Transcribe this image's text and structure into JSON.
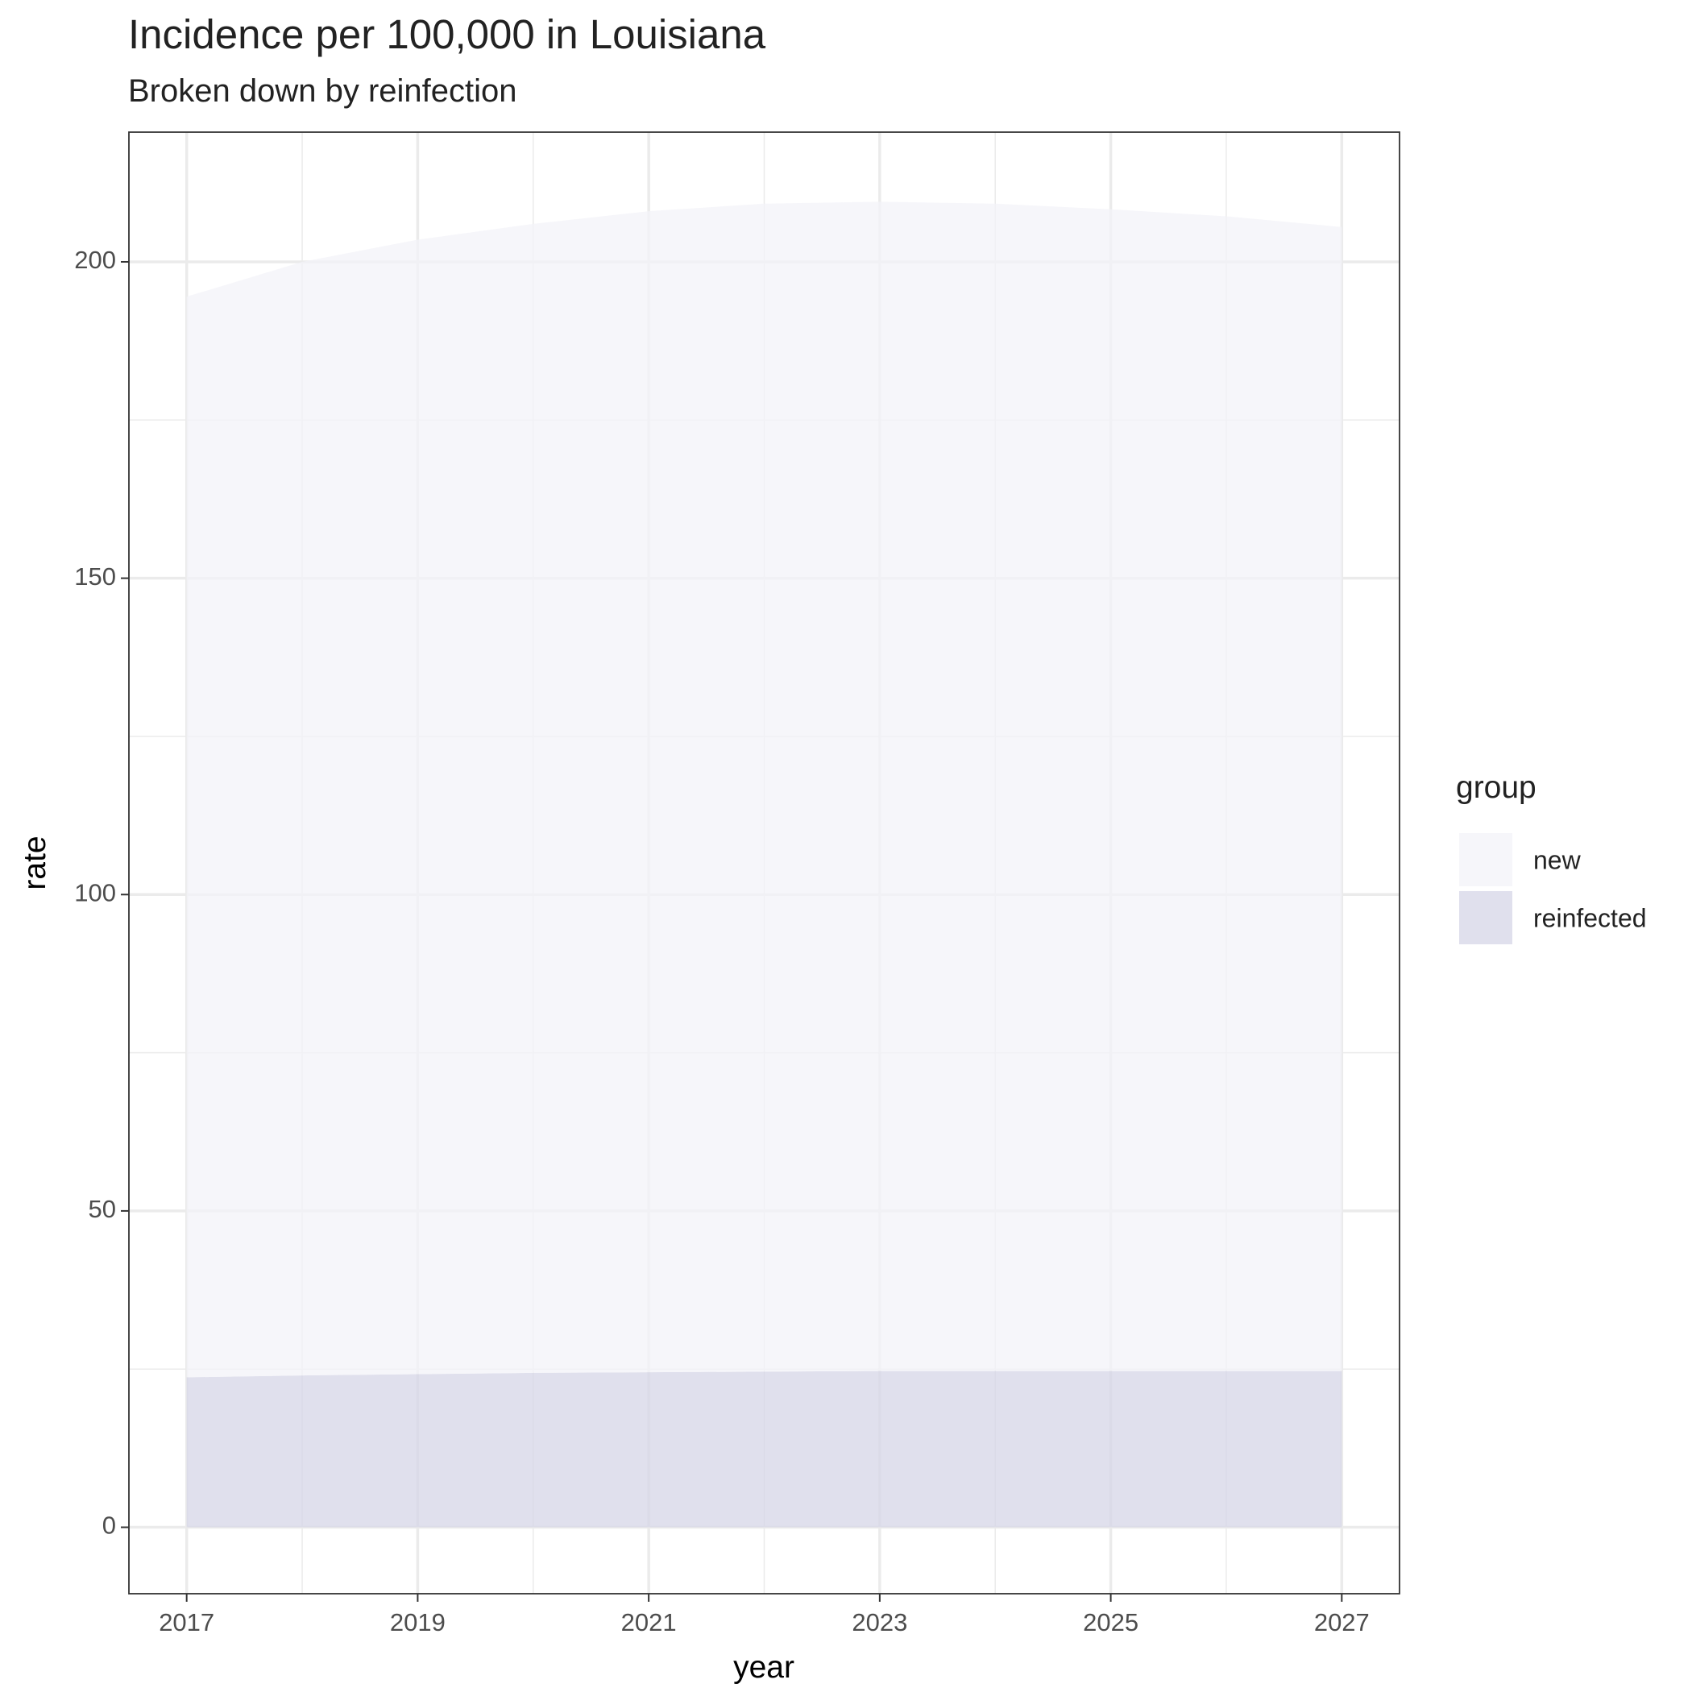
{
  "chart_data": {
    "type": "stacked_area",
    "title": "Incidence per 100,000 in Louisiana",
    "subtitle": "Broken down by reinfection",
    "x_label": "year",
    "y_label": "rate",
    "legend_title": "group",
    "legend_position": "right",
    "grid": true,
    "x": [
      2017,
      2018,
      2019,
      2020,
      2021,
      2022,
      2023,
      2024,
      2025,
      2026,
      2027
    ],
    "series": [
      {
        "name": "new",
        "color": "#f3f3f8",
        "values": [
          170.8,
          176,
          179.3,
          181.6,
          183.5,
          184.6,
          184.8,
          184.5,
          183.6,
          182.5,
          180.8
        ]
      },
      {
        "name": "reinfected",
        "color": "#d5d6e7",
        "values": [
          23.7,
          24,
          24.2,
          24.4,
          24.5,
          24.6,
          24.7,
          24.7,
          24.7,
          24.7,
          24.7
        ]
      }
    ],
    "xlim": [
      2016.5,
      2027.5
    ],
    "xticks": [
      2017,
      2019,
      2021,
      2023,
      2025,
      2027
    ],
    "ylim": [
      -10.5,
      220.5
    ],
    "yticks": [
      0,
      50,
      100,
      150,
      200
    ]
  }
}
